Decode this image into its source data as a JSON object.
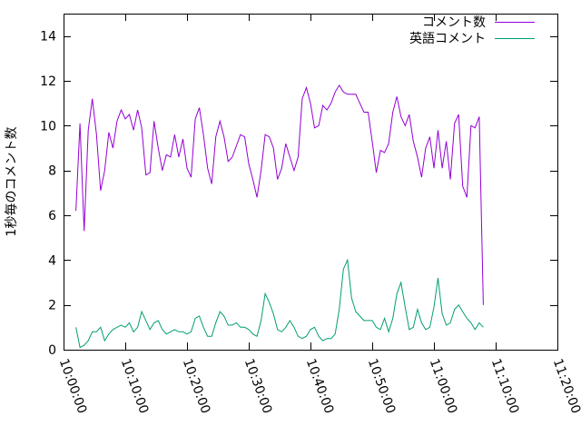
{
  "chart_data": {
    "type": "line",
    "title": "",
    "ylabel": "1秒毎のコメント数",
    "xlabel": "",
    "ylim": [
      0,
      15
    ],
    "xlim": [
      "10:00:00",
      "11:20:00"
    ],
    "y_ticks": [
      0,
      2,
      4,
      6,
      8,
      10,
      12,
      14
    ],
    "x_ticks": [
      "10:00:00",
      "10:10:00",
      "10:20:00",
      "10:30:00",
      "10:40:00",
      "10:50:00",
      "11:00:00",
      "11:10:00",
      "11:20:00"
    ],
    "grid": false,
    "legend_position": "top-right",
    "x_start": "10:02:00",
    "x_step_seconds": 40,
    "series": [
      {
        "name": "コメント数",
        "color": "#9400d3",
        "values": [
          6.2,
          10.1,
          5.3,
          9.8,
          11.2,
          9.6,
          7.1,
          8.0,
          9.7,
          9.0,
          10.2,
          10.7,
          10.3,
          10.5,
          9.8,
          10.7,
          9.9,
          7.8,
          7.9,
          10.2,
          9.0,
          8.0,
          8.7,
          8.6,
          9.6,
          8.6,
          9.4,
          8.1,
          7.7,
          10.3,
          10.8,
          9.6,
          8.1,
          7.4,
          9.5,
          10.2,
          9.5,
          8.4,
          8.6,
          9.1,
          9.6,
          9.5,
          8.3,
          7.6,
          6.8,
          8.0,
          9.6,
          9.5,
          9.0,
          7.6,
          8.1,
          9.2,
          8.6,
          8.0,
          8.6,
          11.2,
          11.7,
          11.0,
          9.9,
          10.0,
          10.9,
          10.7,
          11.0,
          11.5,
          11.8,
          11.5,
          11.4,
          11.4,
          11.4,
          11.0,
          10.6,
          10.6,
          9.3,
          7.9,
          8.9,
          8.8,
          9.2,
          10.6,
          11.3,
          10.4,
          10.0,
          10.5,
          9.3,
          8.6,
          7.7,
          9.0,
          9.5,
          8.1,
          9.8,
          8.1,
          9.3,
          7.6,
          10.1,
          10.5,
          7.3,
          6.8,
          10.0,
          9.9,
          10.4,
          2.0
        ]
      },
      {
        "name": "英語コメント",
        "color": "#009e73",
        "values": [
          1.0,
          0.1,
          0.2,
          0.4,
          0.8,
          0.8,
          1.0,
          0.4,
          0.7,
          0.9,
          1.0,
          1.1,
          1.0,
          1.2,
          0.8,
          1.0,
          1.7,
          1.3,
          0.9,
          1.2,
          1.3,
          0.9,
          0.7,
          0.8,
          0.9,
          0.8,
          0.8,
          0.7,
          0.8,
          1.4,
          1.5,
          1.0,
          0.6,
          0.6,
          1.2,
          1.7,
          1.5,
          1.1,
          1.1,
          1.2,
          1.0,
          1.0,
          0.9,
          0.7,
          0.6,
          1.3,
          2.5,
          2.1,
          1.6,
          0.9,
          0.8,
          1.0,
          1.3,
          1.0,
          0.6,
          0.5,
          0.6,
          0.9,
          1.0,
          0.6,
          0.4,
          0.5,
          0.5,
          0.7,
          1.8,
          3.6,
          4.0,
          2.3,
          1.7,
          1.5,
          1.3,
          1.3,
          1.3,
          1.0,
          0.9,
          1.4,
          0.8,
          1.4,
          2.5,
          3.0,
          1.9,
          0.9,
          1.0,
          1.8,
          1.2,
          0.9,
          1.0,
          1.9,
          3.2,
          1.6,
          1.1,
          1.2,
          1.8,
          2.0,
          1.7,
          1.4,
          1.2,
          0.9,
          1.2,
          1.0
        ]
      }
    ]
  }
}
